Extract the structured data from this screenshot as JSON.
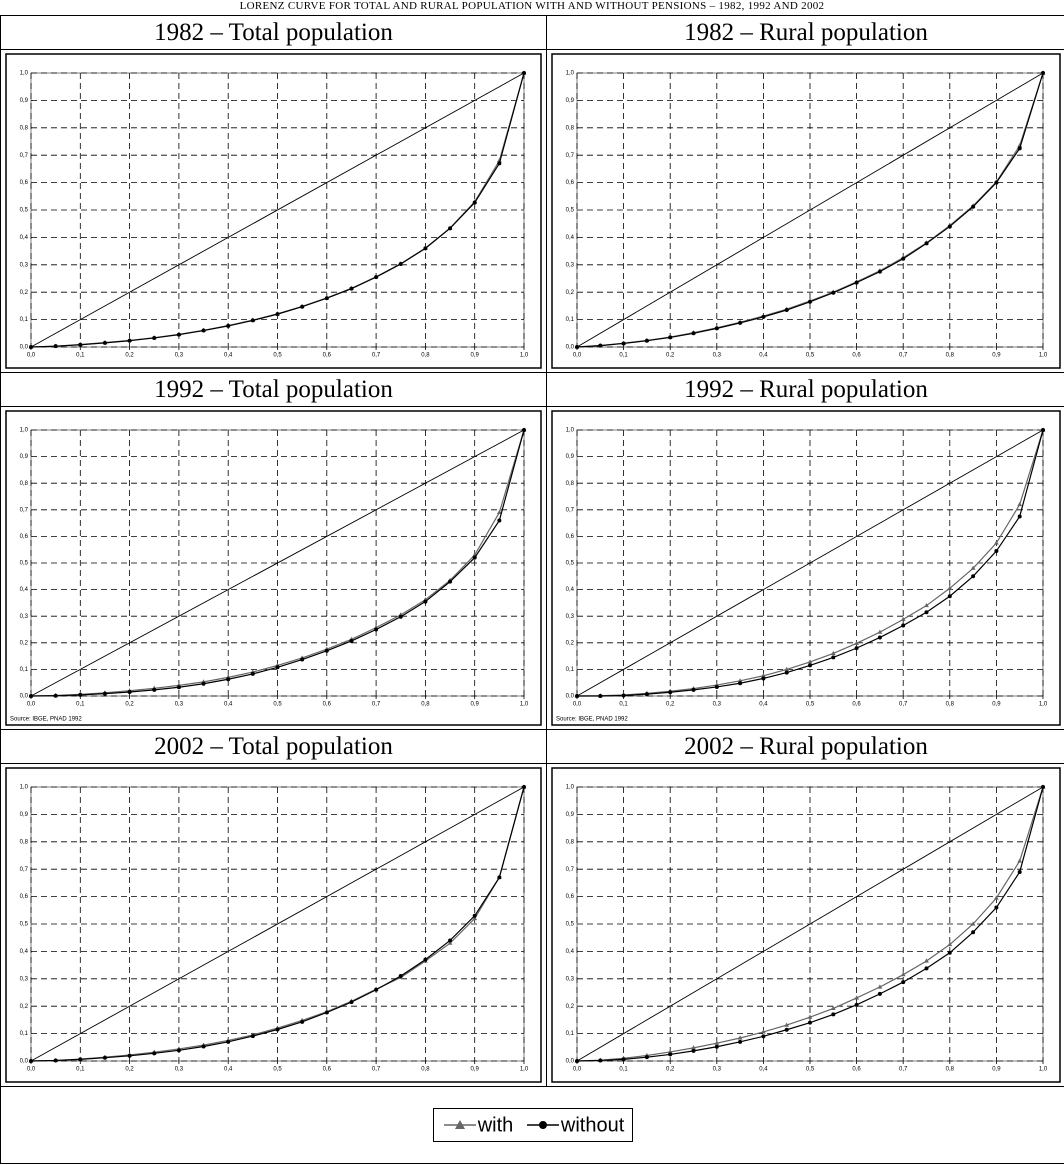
{
  "header": {
    "title": "LORENZ CURVE FOR TOTAL AND RURAL POPULATION WITH AND WITHOUT PENSIONS – 1982, 1992 AND 2002"
  },
  "chart_data": [
    {
      "type": "line",
      "title": "1982 – Total population",
      "x": [
        0,
        0.05,
        0.1,
        0.15,
        0.2,
        0.25,
        0.3,
        0.35,
        0.4,
        0.45,
        0.5,
        0.55,
        0.6,
        0.65,
        0.7,
        0.75,
        0.8,
        0.85,
        0.9,
        0.95,
        1
      ],
      "series": [
        {
          "name": "with",
          "color": "#666666",
          "marker": "triangle",
          "values": [
            0,
            0.003,
            0.009,
            0.016,
            0.024,
            0.034,
            0.046,
            0.061,
            0.078,
            0.098,
            0.121,
            0.148,
            0.179,
            0.214,
            0.256,
            0.304,
            0.361,
            0.434,
            0.53,
            0.68,
            1
          ]
        },
        {
          "name": "without",
          "color": "#000000",
          "marker": "circle",
          "values": [
            0,
            0.003,
            0.008,
            0.015,
            0.023,
            0.033,
            0.045,
            0.06,
            0.077,
            0.097,
            0.12,
            0.147,
            0.178,
            0.213,
            0.255,
            0.303,
            0.36,
            0.433,
            0.527,
            0.67,
            1
          ]
        }
      ],
      "xlim": [
        0,
        1
      ],
      "ylim": [
        0,
        1
      ],
      "xticks": [
        {
          "value": 0,
          "label": "0,0"
        },
        {
          "value": 0.1,
          "label": "0,1"
        },
        {
          "value": 0.2,
          "label": "0,2"
        },
        {
          "value": 0.3,
          "label": "0,3"
        },
        {
          "value": 0.4,
          "label": "0,4"
        },
        {
          "value": 0.5,
          "label": "0,5"
        },
        {
          "value": 0.6,
          "label": "0,6"
        },
        {
          "value": 0.7,
          "label": "0,7"
        },
        {
          "value": 0.8,
          "label": "0,8"
        },
        {
          "value": 0.9,
          "label": "0,9"
        },
        {
          "value": 1,
          "label": "1,0"
        }
      ],
      "yticks": [
        {
          "value": 0,
          "label": "0,0"
        },
        {
          "value": 0.1,
          "label": "0,1"
        },
        {
          "value": 0.2,
          "label": "0,2"
        },
        {
          "value": 0.3,
          "label": "0,3"
        },
        {
          "value": 0.4,
          "label": "0,4"
        },
        {
          "value": 0.5,
          "label": "0,5"
        },
        {
          "value": 0.6,
          "label": "0,6"
        },
        {
          "value": 0.7,
          "label": "0,7"
        },
        {
          "value": 0.8,
          "label": "0,8"
        },
        {
          "value": 0.9,
          "label": "0,9"
        },
        {
          "value": 1,
          "label": "1,0"
        }
      ],
      "grid": true
    },
    {
      "type": "line",
      "title": "1982 – Rural population",
      "x": [
        0,
        0.05,
        0.1,
        0.15,
        0.2,
        0.25,
        0.3,
        0.35,
        0.4,
        0.45,
        0.5,
        0.55,
        0.6,
        0.65,
        0.7,
        0.75,
        0.8,
        0.85,
        0.9,
        0.95,
        1
      ],
      "series": [
        {
          "name": "with",
          "color": "#666666",
          "marker": "triangle",
          "values": [
            0,
            0.005,
            0.014,
            0.024,
            0.036,
            0.052,
            0.07,
            0.09,
            0.113,
            0.138,
            0.168,
            0.2,
            0.238,
            0.278,
            0.326,
            0.38,
            0.443,
            0.515,
            0.603,
            0.735,
            1
          ]
        },
        {
          "name": "without",
          "color": "#000000",
          "marker": "circle",
          "values": [
            0,
            0.005,
            0.013,
            0.023,
            0.035,
            0.05,
            0.068,
            0.088,
            0.11,
            0.135,
            0.165,
            0.198,
            0.235,
            0.275,
            0.322,
            0.378,
            0.44,
            0.512,
            0.6,
            0.725,
            1
          ]
        }
      ],
      "xlim": [
        0,
        1
      ],
      "ylim": [
        0,
        1
      ],
      "xticks": [
        {
          "value": 0,
          "label": "0,0"
        },
        {
          "value": 0.1,
          "label": "0,1"
        },
        {
          "value": 0.2,
          "label": "0,2"
        },
        {
          "value": 0.3,
          "label": "0,3"
        },
        {
          "value": 0.4,
          "label": "0,4"
        },
        {
          "value": 0.5,
          "label": "0,5"
        },
        {
          "value": 0.6,
          "label": "0,6"
        },
        {
          "value": 0.7,
          "label": "0,7"
        },
        {
          "value": 0.8,
          "label": "0,8"
        },
        {
          "value": 0.9,
          "label": "0,9"
        },
        {
          "value": 1,
          "label": "1,0"
        }
      ],
      "yticks": [
        {
          "value": 0,
          "label": "0,0"
        },
        {
          "value": 0.1,
          "label": "0,1"
        },
        {
          "value": 0.2,
          "label": "0,2"
        },
        {
          "value": 0.3,
          "label": "0,3"
        },
        {
          "value": 0.4,
          "label": "0,4"
        },
        {
          "value": 0.5,
          "label": "0,5"
        },
        {
          "value": 0.6,
          "label": "0,6"
        },
        {
          "value": 0.7,
          "label": "0,7"
        },
        {
          "value": 0.8,
          "label": "0,8"
        },
        {
          "value": 0.9,
          "label": "0,9"
        },
        {
          "value": 1,
          "label": "1,0"
        }
      ],
      "grid": true
    },
    {
      "type": "line",
      "title": "1992 – Total population",
      "source": "Source: IBGE, PNAD 1992",
      "x": [
        0,
        0.05,
        0.1,
        0.15,
        0.2,
        0.25,
        0.3,
        0.35,
        0.4,
        0.45,
        0.5,
        0.55,
        0.6,
        0.65,
        0.7,
        0.75,
        0.8,
        0.85,
        0.9,
        0.95,
        1
      ],
      "series": [
        {
          "name": "with",
          "color": "#666666",
          "marker": "triangle",
          "values": [
            0,
            0.002,
            0.006,
            0.012,
            0.02,
            0.029,
            0.04,
            0.053,
            0.07,
            0.09,
            0.115,
            0.143,
            0.176,
            0.213,
            0.257,
            0.305,
            0.362,
            0.435,
            0.53,
            0.69,
            1
          ]
        },
        {
          "name": "without",
          "color": "#000000",
          "marker": "circle",
          "values": [
            0,
            0.001,
            0.004,
            0.009,
            0.015,
            0.023,
            0.033,
            0.046,
            0.063,
            0.083,
            0.108,
            0.137,
            0.17,
            0.207,
            0.25,
            0.298,
            0.355,
            0.43,
            0.52,
            0.66,
            1
          ]
        }
      ],
      "xlim": [
        0,
        1
      ],
      "ylim": [
        0,
        1
      ],
      "xticks": [
        {
          "value": 0,
          "label": "0,0"
        },
        {
          "value": 0.1,
          "label": "0,1"
        },
        {
          "value": 0.2,
          "label": "0,2"
        },
        {
          "value": 0.3,
          "label": "0,3"
        },
        {
          "value": 0.4,
          "label": "0,4"
        },
        {
          "value": 0.5,
          "label": "0,5"
        },
        {
          "value": 0.6,
          "label": "0,6"
        },
        {
          "value": 0.7,
          "label": "0,7"
        },
        {
          "value": 0.8,
          "label": "0,8"
        },
        {
          "value": 0.9,
          "label": "0,9"
        },
        {
          "value": 1,
          "label": "1,0"
        }
      ],
      "yticks": [
        {
          "value": 0,
          "label": "0,0"
        },
        {
          "value": 0.1,
          "label": "0,1"
        },
        {
          "value": 0.2,
          "label": "0,2"
        },
        {
          "value": 0.3,
          "label": "0,3"
        },
        {
          "value": 0.4,
          "label": "0,4"
        },
        {
          "value": 0.5,
          "label": "0,5"
        },
        {
          "value": 0.6,
          "label": "0,6"
        },
        {
          "value": 0.7,
          "label": "0,7"
        },
        {
          "value": 0.8,
          "label": "0,8"
        },
        {
          "value": 0.9,
          "label": "0,9"
        },
        {
          "value": 1,
          "label": "1,0"
        }
      ],
      "grid": true
    },
    {
      "type": "line",
      "title": "1992 – Rural population",
      "source": "Source: IBGE, PNAD 1992",
      "x": [
        0,
        0.05,
        0.1,
        0.15,
        0.2,
        0.25,
        0.3,
        0.35,
        0.4,
        0.45,
        0.5,
        0.55,
        0.6,
        0.65,
        0.7,
        0.75,
        0.8,
        0.85,
        0.9,
        0.95,
        1
      ],
      "series": [
        {
          "name": "with",
          "color": "#666666",
          "marker": "triangle",
          "values": [
            0,
            0.001,
            0.004,
            0.01,
            0.018,
            0.028,
            0.041,
            0.057,
            0.076,
            0.1,
            0.128,
            0.16,
            0.198,
            0.24,
            0.288,
            0.34,
            0.405,
            0.48,
            0.575,
            0.72,
            1
          ]
        },
        {
          "name": "without",
          "color": "#000000",
          "marker": "circle",
          "values": [
            0,
            0,
            0.002,
            0.007,
            0.014,
            0.023,
            0.034,
            0.048,
            0.066,
            0.088,
            0.115,
            0.145,
            0.18,
            0.22,
            0.265,
            0.315,
            0.375,
            0.45,
            0.545,
            0.675,
            1
          ]
        }
      ],
      "xlim": [
        0,
        1
      ],
      "ylim": [
        0,
        1
      ],
      "xticks": [
        {
          "value": 0,
          "label": "0,0"
        },
        {
          "value": 0.1,
          "label": "0,1"
        },
        {
          "value": 0.2,
          "label": "0,2"
        },
        {
          "value": 0.3,
          "label": "0,3"
        },
        {
          "value": 0.4,
          "label": "0,4"
        },
        {
          "value": 0.5,
          "label": "0,5"
        },
        {
          "value": 0.6,
          "label": "0,6"
        },
        {
          "value": 0.7,
          "label": "0,7"
        },
        {
          "value": 0.8,
          "label": "0,8"
        },
        {
          "value": 0.9,
          "label": "0,9"
        },
        {
          "value": 1,
          "label": "1,0"
        }
      ],
      "yticks": [
        {
          "value": 0,
          "label": "0,0"
        },
        {
          "value": 0.1,
          "label": "0,1"
        },
        {
          "value": 0.2,
          "label": "0,2"
        },
        {
          "value": 0.3,
          "label": "0,3"
        },
        {
          "value": 0.4,
          "label": "0,4"
        },
        {
          "value": 0.5,
          "label": "0,5"
        },
        {
          "value": 0.6,
          "label": "0,6"
        },
        {
          "value": 0.7,
          "label": "0,7"
        },
        {
          "value": 0.8,
          "label": "0,8"
        },
        {
          "value": 0.9,
          "label": "0,9"
        },
        {
          "value": 1,
          "label": "1,0"
        }
      ],
      "grid": true
    },
    {
      "type": "line",
      "title": "2002 – Total population",
      "x": [
        0,
        0.05,
        0.1,
        0.15,
        0.2,
        0.25,
        0.3,
        0.35,
        0.4,
        0.45,
        0.5,
        0.55,
        0.6,
        0.65,
        0.7,
        0.75,
        0.8,
        0.85,
        0.9,
        0.95,
        1
      ],
      "series": [
        {
          "name": "with",
          "color": "#666666",
          "marker": "triangle",
          "values": [
            0,
            0.002,
            0.007,
            0.014,
            0.022,
            0.032,
            0.044,
            0.058,
            0.075,
            0.095,
            0.12,
            0.148,
            0.18,
            0.218,
            0.262,
            0.305,
            0.365,
            0.43,
            0.52,
            0.67,
            1
          ]
        },
        {
          "name": "without",
          "color": "#000000",
          "marker": "circle",
          "values": [
            0,
            0.002,
            0.006,
            0.012,
            0.019,
            0.028,
            0.039,
            0.053,
            0.07,
            0.091,
            0.115,
            0.143,
            0.177,
            0.215,
            0.26,
            0.31,
            0.37,
            0.44,
            0.53,
            0.67,
            1
          ]
        }
      ],
      "xlim": [
        0,
        1
      ],
      "ylim": [
        0,
        1
      ],
      "xticks": [
        {
          "value": 0,
          "label": "0,0"
        },
        {
          "value": 0.1,
          "label": "0,1"
        },
        {
          "value": 0.2,
          "label": "0,2"
        },
        {
          "value": 0.3,
          "label": "0,3"
        },
        {
          "value": 0.4,
          "label": "0,4"
        },
        {
          "value": 0.5,
          "label": "0,5"
        },
        {
          "value": 0.6,
          "label": "0,6"
        },
        {
          "value": 0.7,
          "label": "0,7"
        },
        {
          "value": 0.8,
          "label": "0,8"
        },
        {
          "value": 0.9,
          "label": "0,9"
        },
        {
          "value": 1,
          "label": "1,0"
        }
      ],
      "yticks": [
        {
          "value": 0,
          "label": "0,0"
        },
        {
          "value": 0.1,
          "label": "0,1"
        },
        {
          "value": 0.2,
          "label": "0,2"
        },
        {
          "value": 0.3,
          "label": "0,3"
        },
        {
          "value": 0.4,
          "label": "0,4"
        },
        {
          "value": 0.5,
          "label": "0,5"
        },
        {
          "value": 0.6,
          "label": "0,6"
        },
        {
          "value": 0.7,
          "label": "0,7"
        },
        {
          "value": 0.8,
          "label": "0,8"
        },
        {
          "value": 0.9,
          "label": "0,9"
        },
        {
          "value": 1,
          "label": "1,0"
        }
      ],
      "grid": true
    },
    {
      "type": "line",
      "title": "2002 – Rural population",
      "x": [
        0,
        0.05,
        0.1,
        0.15,
        0.2,
        0.25,
        0.3,
        0.35,
        0.4,
        0.45,
        0.5,
        0.55,
        0.6,
        0.65,
        0.7,
        0.75,
        0.8,
        0.85,
        0.9,
        0.95,
        1
      ],
      "series": [
        {
          "name": "with",
          "color": "#666666",
          "marker": "triangle",
          "values": [
            0,
            0.003,
            0.01,
            0.02,
            0.033,
            0.048,
            0.065,
            0.084,
            0.106,
            0.131,
            0.16,
            0.192,
            0.23,
            0.27,
            0.315,
            0.365,
            0.425,
            0.5,
            0.595,
            0.73,
            1
          ]
        },
        {
          "name": "without",
          "color": "#000000",
          "marker": "circle",
          "values": [
            0,
            0.002,
            0.006,
            0.014,
            0.024,
            0.037,
            0.052,
            0.07,
            0.09,
            0.114,
            0.14,
            0.17,
            0.205,
            0.245,
            0.288,
            0.338,
            0.395,
            0.47,
            0.56,
            0.69,
            1
          ]
        }
      ],
      "xlim": [
        0,
        1
      ],
      "ylim": [
        0,
        1
      ],
      "xticks": [
        {
          "value": 0,
          "label": "0,0"
        },
        {
          "value": 0.1,
          "label": "0,1"
        },
        {
          "value": 0.2,
          "label": "0,2"
        },
        {
          "value": 0.3,
          "label": "0,3"
        },
        {
          "value": 0.4,
          "label": "0,4"
        },
        {
          "value": 0.5,
          "label": "0,5"
        },
        {
          "value": 0.6,
          "label": "0,6"
        },
        {
          "value": 0.7,
          "label": "0,7"
        },
        {
          "value": 0.8,
          "label": "0,8"
        },
        {
          "value": 0.9,
          "label": "0,9"
        },
        {
          "value": 1,
          "label": "1,0"
        }
      ],
      "yticks": [
        {
          "value": 0,
          "label": "0,0"
        },
        {
          "value": 0.1,
          "label": "0,1"
        },
        {
          "value": 0.2,
          "label": "0,2"
        },
        {
          "value": 0.3,
          "label": "0,3"
        },
        {
          "value": 0.4,
          "label": "0,4"
        },
        {
          "value": 0.5,
          "label": "0,5"
        },
        {
          "value": 0.6,
          "label": "0,6"
        },
        {
          "value": 0.7,
          "label": "0,7"
        },
        {
          "value": 0.8,
          "label": "0,8"
        },
        {
          "value": 0.9,
          "label": "0,9"
        },
        {
          "value": 1,
          "label": "1,0"
        }
      ],
      "grid": true
    }
  ]
}
